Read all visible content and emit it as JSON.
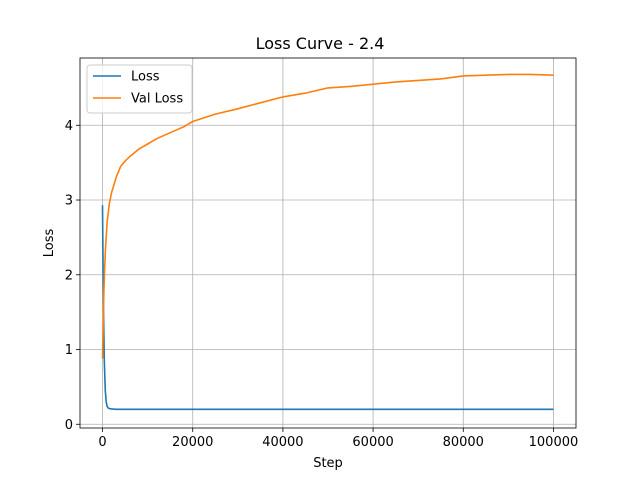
{
  "chart_data": {
    "type": "line",
    "title": "Loss Curve - 2.4",
    "xlabel": "Step",
    "ylabel": "Loss",
    "xlim": [
      -5000,
      105000
    ],
    "ylim": [
      -0.05,
      4.9
    ],
    "grid": true,
    "legend_position": "upper-left",
    "x_ticks": [
      {
        "value": 0,
        "label": "0"
      },
      {
        "value": 20000,
        "label": "20000"
      },
      {
        "value": 40000,
        "label": "40000"
      },
      {
        "value": 60000,
        "label": "60000"
      },
      {
        "value": 80000,
        "label": "80000"
      },
      {
        "value": 100000,
        "label": "100000"
      }
    ],
    "y_ticks": [
      {
        "value": 0,
        "label": "0"
      },
      {
        "value": 1,
        "label": "1"
      },
      {
        "value": 2,
        "label": "2"
      },
      {
        "value": 3,
        "label": "3"
      },
      {
        "value": 4,
        "label": "4"
      }
    ],
    "series": [
      {
        "name": "Loss",
        "color": "#1f77b4",
        "x": [
          0,
          200,
          400,
          600,
          800,
          1000,
          1200,
          1500,
          2000,
          3000,
          5000,
          10000,
          20000,
          40000,
          60000,
          80000,
          100000
        ],
        "y": [
          2.93,
          1.6,
          0.85,
          0.45,
          0.3,
          0.24,
          0.22,
          0.21,
          0.205,
          0.2,
          0.2,
          0.2,
          0.2,
          0.2,
          0.2,
          0.2,
          0.2
        ]
      },
      {
        "name": "Val Loss",
        "color": "#ff7f0e",
        "x": [
          0,
          300,
          600,
          1000,
          1500,
          2000,
          3000,
          4000,
          5000,
          6000,
          8000,
          10000,
          12000,
          15000,
          18000,
          20000,
          25000,
          30000,
          35000,
          40000,
          45000,
          50000,
          55000,
          60000,
          65000,
          70000,
          75000,
          80000,
          85000,
          90000,
          95000,
          100000
        ],
        "y": [
          0.88,
          1.8,
          2.3,
          2.7,
          2.95,
          3.1,
          3.3,
          3.45,
          3.52,
          3.58,
          3.68,
          3.75,
          3.82,
          3.9,
          3.98,
          4.05,
          4.15,
          4.22,
          4.3,
          4.38,
          4.43,
          4.5,
          4.52,
          4.55,
          4.58,
          4.6,
          4.62,
          4.66,
          4.67,
          4.68,
          4.68,
          4.67
        ]
      }
    ]
  }
}
